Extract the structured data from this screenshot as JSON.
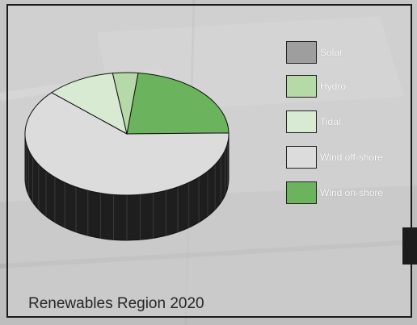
{
  "chart_data": {
    "type": "pie",
    "title": "Renewables Region 2020",
    "style": "3d",
    "slices": [
      {
        "label": "Solar",
        "value": 0,
        "color": "#9e9e9e"
      },
      {
        "label": "Hydro",
        "value": 4,
        "color": "#b5d9a7"
      },
      {
        "label": "Tidal",
        "value": 11,
        "color": "#d8ead2"
      },
      {
        "label": "Wind off-shore",
        "value": 62,
        "color": "#dcdcdc"
      },
      {
        "label": "Wind on-shore",
        "value": 23,
        "color": "#6bb35d"
      }
    ],
    "legend_position": "right"
  },
  "colors": {
    "side": "#1e1e1e",
    "outline": "#111111"
  }
}
